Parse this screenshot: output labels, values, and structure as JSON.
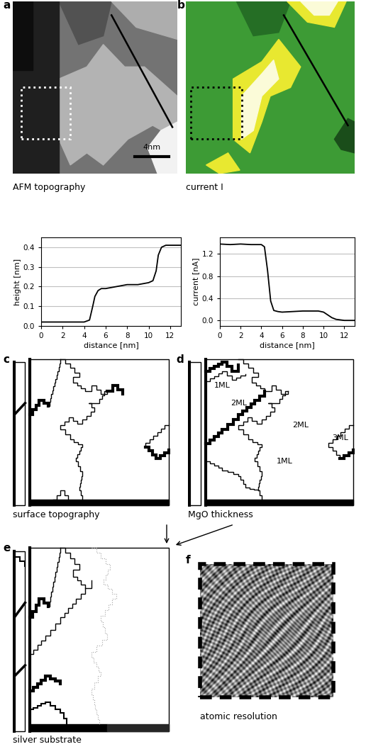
{
  "chart_data": [
    {
      "type": "line",
      "panel": "a",
      "xlabel": "distance [nm]",
      "ylabel": "height [nm]",
      "x": [
        0,
        1,
        2,
        3,
        4,
        4.5,
        4.8,
        5.0,
        5.3,
        5.6,
        6,
        7,
        8,
        9,
        10,
        10.4,
        10.7,
        10.9,
        11.2,
        11.6,
        12,
        13
      ],
      "values": [
        0.02,
        0.02,
        0.02,
        0.02,
        0.02,
        0.03,
        0.1,
        0.15,
        0.18,
        0.19,
        0.19,
        0.2,
        0.21,
        0.21,
        0.22,
        0.23,
        0.28,
        0.36,
        0.4,
        0.41,
        0.41,
        0.41
      ],
      "color": "#000000",
      "xlim": [
        0,
        13
      ],
      "xticks": [
        0,
        2,
        4,
        6,
        8,
        10,
        12
      ],
      "ylim": [
        0.0,
        0.45
      ],
      "yticks": [
        0.0,
        0.1,
        0.2,
        0.3,
        0.4
      ],
      "grid": true
    },
    {
      "type": "line",
      "panel": "b",
      "xlabel": "distance [nm]",
      "ylabel": "current [nA]",
      "x": [
        0,
        1,
        2,
        3,
        4,
        4.3,
        4.6,
        4.9,
        5.2,
        5.6,
        6,
        7,
        8,
        9,
        9.5,
        10,
        10.4,
        10.8,
        11.2,
        11.6,
        12,
        13
      ],
      "values": [
        1.38,
        1.37,
        1.38,
        1.37,
        1.37,
        1.33,
        0.9,
        0.35,
        0.18,
        0.16,
        0.15,
        0.16,
        0.17,
        0.17,
        0.17,
        0.15,
        0.1,
        0.05,
        0.02,
        0.01,
        0.0,
        0.0
      ],
      "color": "#000000",
      "xlim": [
        0,
        13
      ],
      "xticks": [
        0,
        2,
        4,
        6,
        8,
        10,
        12
      ],
      "ylim": [
        -0.1,
        1.5
      ],
      "yticks": [
        0.0,
        0.4,
        0.8,
        1.2
      ],
      "grid": true
    }
  ],
  "panels": {
    "a": {
      "label": "a",
      "caption": "AFM topography",
      "scale_bar": "4nm"
    },
    "b": {
      "label": "b",
      "caption": "current I"
    },
    "c": {
      "label": "c",
      "caption": "surface topography"
    },
    "d": {
      "label": "d",
      "caption": "MgO thickness",
      "regions": [
        "1ML",
        "2ML",
        "2ML",
        "3ML",
        "1ML"
      ]
    },
    "e": {
      "label": "e",
      "caption": "silver substrate"
    },
    "f": {
      "label": "f",
      "caption": "atomic resolution"
    }
  }
}
